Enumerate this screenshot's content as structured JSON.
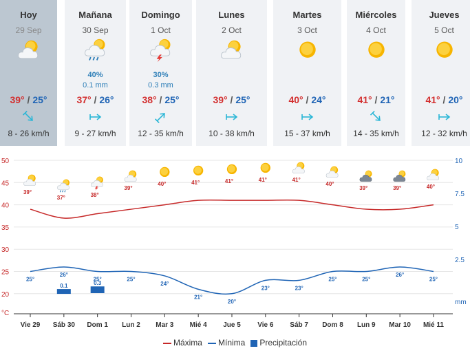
{
  "forecast": [
    {
      "name": "Hoy",
      "date": "29 Sep",
      "icon": "sun-cloud-icon",
      "rain_prob": "",
      "rain_mm": "",
      "tmax": "39°",
      "tmin": "25°",
      "wind": "8 - 26 km/h",
      "wind_icon": "arrow-southeast-icon"
    },
    {
      "name": "Mañana",
      "date": "30 Sep",
      "icon": "sun-cloud-rain-icon",
      "rain_prob": "40%",
      "rain_mm": "0.1 mm",
      "tmax": "37°",
      "tmin": "26°",
      "wind": "9 - 27 km/h",
      "wind_icon": "arrow-east-icon"
    },
    {
      "name": "Domingo",
      "date": "1 Oct",
      "icon": "storm-sun-icon",
      "rain_prob": "30%",
      "rain_mm": "0.3 mm",
      "tmax": "38°",
      "tmin": "25°",
      "wind": "12 - 35 km/h",
      "wind_icon": "arrow-northeast-icon"
    },
    {
      "name": "Lunes",
      "date": "2 Oct",
      "icon": "sun-cloud-icon",
      "rain_prob": "",
      "rain_mm": "",
      "tmax": "39°",
      "tmin": "25°",
      "wind": "10 - 38 km/h",
      "wind_icon": "arrow-east-icon"
    },
    {
      "name": "Martes",
      "date": "3 Oct",
      "icon": "sun-icon",
      "rain_prob": "",
      "rain_mm": "",
      "tmax": "40°",
      "tmin": "24°",
      "wind": "15 - 37 km/h",
      "wind_icon": "arrow-east-icon"
    },
    {
      "name": "Miércoles",
      "date": "4 Oct",
      "icon": "sun-icon",
      "rain_prob": "",
      "rain_mm": "",
      "tmax": "41°",
      "tmin": "21°",
      "wind": "14 - 35 km/h",
      "wind_icon": "arrow-southeast-icon"
    },
    {
      "name": "Jueves",
      "date": "5 Oct",
      "icon": "sun-icon",
      "rain_prob": "",
      "rain_mm": "",
      "tmax": "41°",
      "tmin": "20°",
      "wind": "12 - 32 km/h",
      "wind_icon": "arrow-east-icon"
    }
  ],
  "temp_separator": " / ",
  "chart_data": {
    "type": "line",
    "categories": [
      "Vie 29",
      "Sáb 30",
      "Dom 1",
      "Lun 2",
      "Mar 3",
      "Mié 4",
      "Jue 5",
      "Vie 6",
      "Sáb 7",
      "Dom 8",
      "Lun 9",
      "Mar 10",
      "Mié 11"
    ],
    "icons": [
      "sun-cloud-icon",
      "sun-cloud-rain-icon",
      "storm-sun-icon",
      "sun-cloud-icon",
      "sun-icon",
      "sun-icon",
      "sun-icon",
      "sun-icon",
      "sun-cloud-icon",
      "sun-cloud-icon",
      "dark-cloud-sun-icon",
      "dark-cloud-sun-icon",
      "sun-cloud-icon"
    ],
    "series": [
      {
        "name": "Máxima",
        "color": "#c62828",
        "values": [
          39,
          37,
          38,
          39,
          40,
          41,
          41,
          41,
          41,
          40,
          39,
          39,
          40
        ],
        "labels": [
          "39°",
          "37°",
          "38°",
          "39°",
          "40°",
          "41°",
          "41°",
          "41°",
          "41°",
          "40°",
          "39°",
          "39°",
          "40°"
        ]
      },
      {
        "name": "Mínima",
        "color": "#1f64b5",
        "values": [
          25,
          26,
          25,
          25,
          24,
          21,
          20,
          23,
          23,
          25,
          25,
          26,
          25
        ],
        "labels": [
          "25°",
          "26°",
          "25°",
          "25°",
          "24°",
          "21°",
          "20°",
          "23°",
          "23°",
          "25°",
          "25°",
          "26°",
          "25°"
        ]
      },
      {
        "name": "Precipitación",
        "color": "#1f64b5",
        "type": "bar",
        "values": [
          0,
          0.1,
          0.3,
          0,
          0,
          0,
          0,
          0,
          0,
          0,
          0,
          0,
          0
        ],
        "labels": [
          "",
          "0.1",
          "0.3",
          "",
          "",
          "",
          "",
          "",
          "",
          "",
          "",
          "",
          ""
        ]
      }
    ],
    "left_axis": {
      "unit": "°C",
      "ticks": [
        20,
        25,
        30,
        35,
        40,
        45,
        50
      ],
      "range": [
        17.5,
        50
      ]
    },
    "right_axis": {
      "unit": "mm",
      "ticks": [
        2.5,
        5,
        7.5,
        10
      ],
      "range": [
        0,
        10
      ]
    },
    "legend_position": "bottom-center"
  }
}
